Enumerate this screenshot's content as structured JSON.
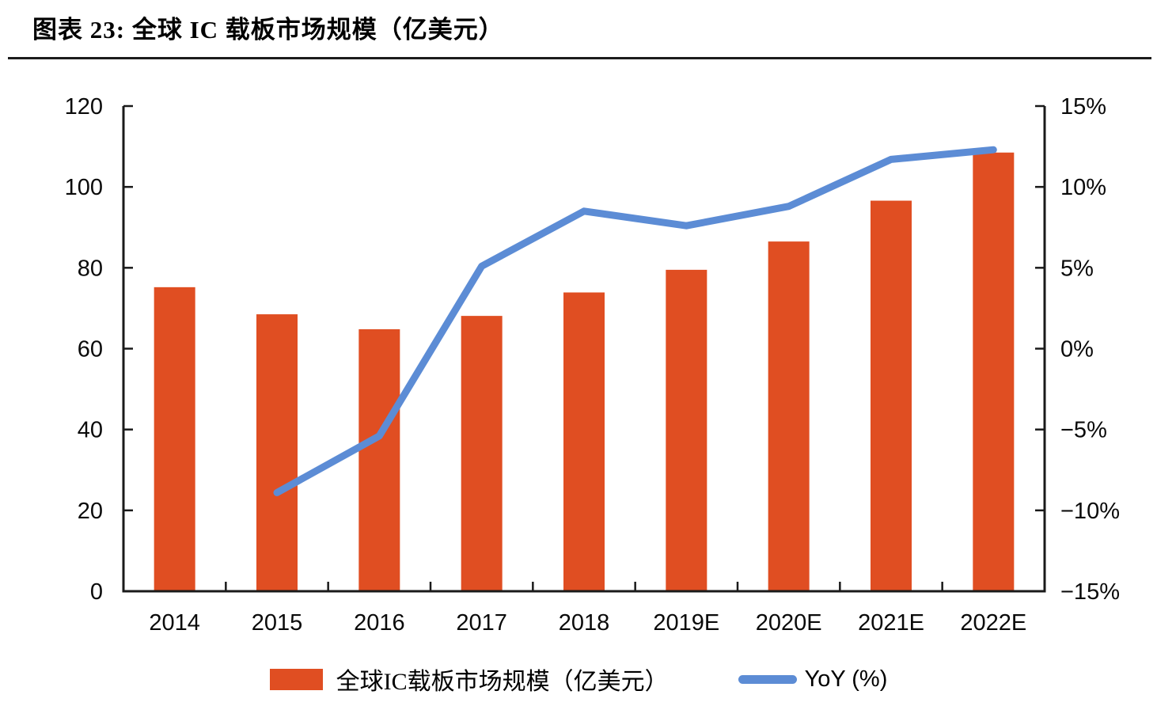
{
  "page": {
    "title": "图表 23: 全球 IC 载板市场规模（亿美元）"
  },
  "colors": {
    "bar": "#E04E22",
    "line": "#5C8CD5",
    "axis": "#1a1a1a",
    "text": "#0a0a0a"
  },
  "chart_data": {
    "type": "combo-bar-line",
    "categories": [
      "2014",
      "2015",
      "2016",
      "2017",
      "2018",
      "2019E",
      "2020E",
      "2021E",
      "2022E"
    ],
    "series": [
      {
        "name": "全球IC载板市场规模（亿美元）",
        "type": "bar",
        "axis": "left",
        "color": "#E04E22",
        "values": [
          75.2,
          68.5,
          64.8,
          68.1,
          73.9,
          79.5,
          86.5,
          96.6,
          108.5
        ]
      },
      {
        "name": "YoY (%)",
        "type": "line",
        "axis": "right",
        "color": "#5C8CD5",
        "values": [
          null,
          -8.9,
          -5.4,
          5.1,
          8.5,
          7.6,
          8.8,
          11.7,
          12.3
        ]
      }
    ],
    "left_axis": {
      "min": 0,
      "max": 120,
      "step": 20,
      "tick_labels": [
        "0",
        "20",
        "40",
        "60",
        "80",
        "100",
        "120"
      ]
    },
    "right_axis": {
      "min": -15,
      "max": 15,
      "step": 5,
      "tick_labels": [
        "−15%",
        "−10%",
        "−5%",
        "0%",
        "5%",
        "10%",
        "15%"
      ]
    },
    "grid": false,
    "legend_position": "bottom"
  },
  "legend": {
    "items": [
      {
        "label": "全球IC载板市场规模（亿美元）",
        "swatch": "bar",
        "color": "#E04E22"
      },
      {
        "label": "YoY (%)",
        "swatch": "line",
        "color": "#5C8CD5"
      }
    ]
  }
}
